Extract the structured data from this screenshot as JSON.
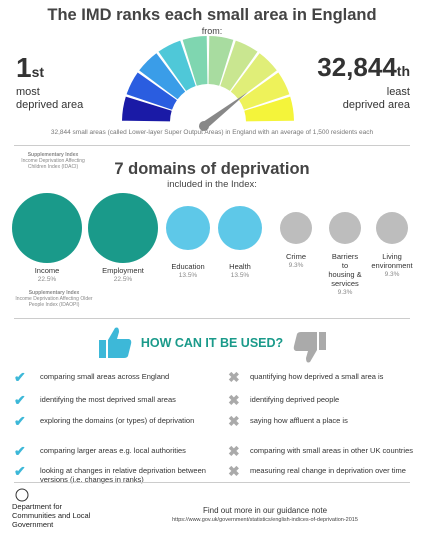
{
  "header": {
    "title": "The IMD ranks each small area in England",
    "from": "from:",
    "first": {
      "rank": "1",
      "suffix": "st",
      "label_line1": "most",
      "label_line2": "deprived area"
    },
    "last": {
      "rank": "32,844",
      "suffix": "th",
      "label_line1": "least",
      "label_line2": "deprived area"
    },
    "note": "32,844 small areas (called Lower-layer Super Output Areas) in England with an average of 1,500 residents each"
  },
  "domains": {
    "title": "7 domains of deprivation",
    "subtitle": "included in the Index:",
    "supplementary_top": {
      "title": "Supplementary Index",
      "text": "Income Deprivation Affecting Children Index (IDACI)"
    },
    "supplementary_bottom": {
      "title": "Supplementary Index",
      "text": "Income Deprivation Affecting Older People Index (IDAOPI)"
    },
    "items": [
      {
        "name": "Income",
        "weight": "22.5%"
      },
      {
        "name": "Employment",
        "weight": "22.5%"
      },
      {
        "name": "Education",
        "weight": "13.5%"
      },
      {
        "name": "Health",
        "weight": "13.5%"
      },
      {
        "name": "Crime",
        "weight": "9.3%"
      },
      {
        "name": "Barriers to housing & services",
        "weight": "9.3%"
      },
      {
        "name": "Living environment",
        "weight": "9.3%"
      }
    ]
  },
  "uses": {
    "title": "HOW CAN IT BE USED?",
    "can": [
      "comparing small areas across England",
      "identifying the most deprived small areas",
      "exploring the domains (or types) of deprivation",
      "comparing larger areas e.g. local authorities",
      "looking at changes in relative deprivation between versions (i.e. changes in ranks)"
    ],
    "cannot": [
      "quantifying how deprived a small area is",
      "identifying deprived people",
      "saying how affluent a place is",
      "comparing with small areas in other UK countries",
      "measuring real change in deprivation over time"
    ]
  },
  "footer": {
    "department": "Department for Communities and Local Government",
    "guidance": "Find out more in our guidance note",
    "url": "https://www.gov.uk/government/statistics/english-indices-of-deprivation-2015"
  }
}
